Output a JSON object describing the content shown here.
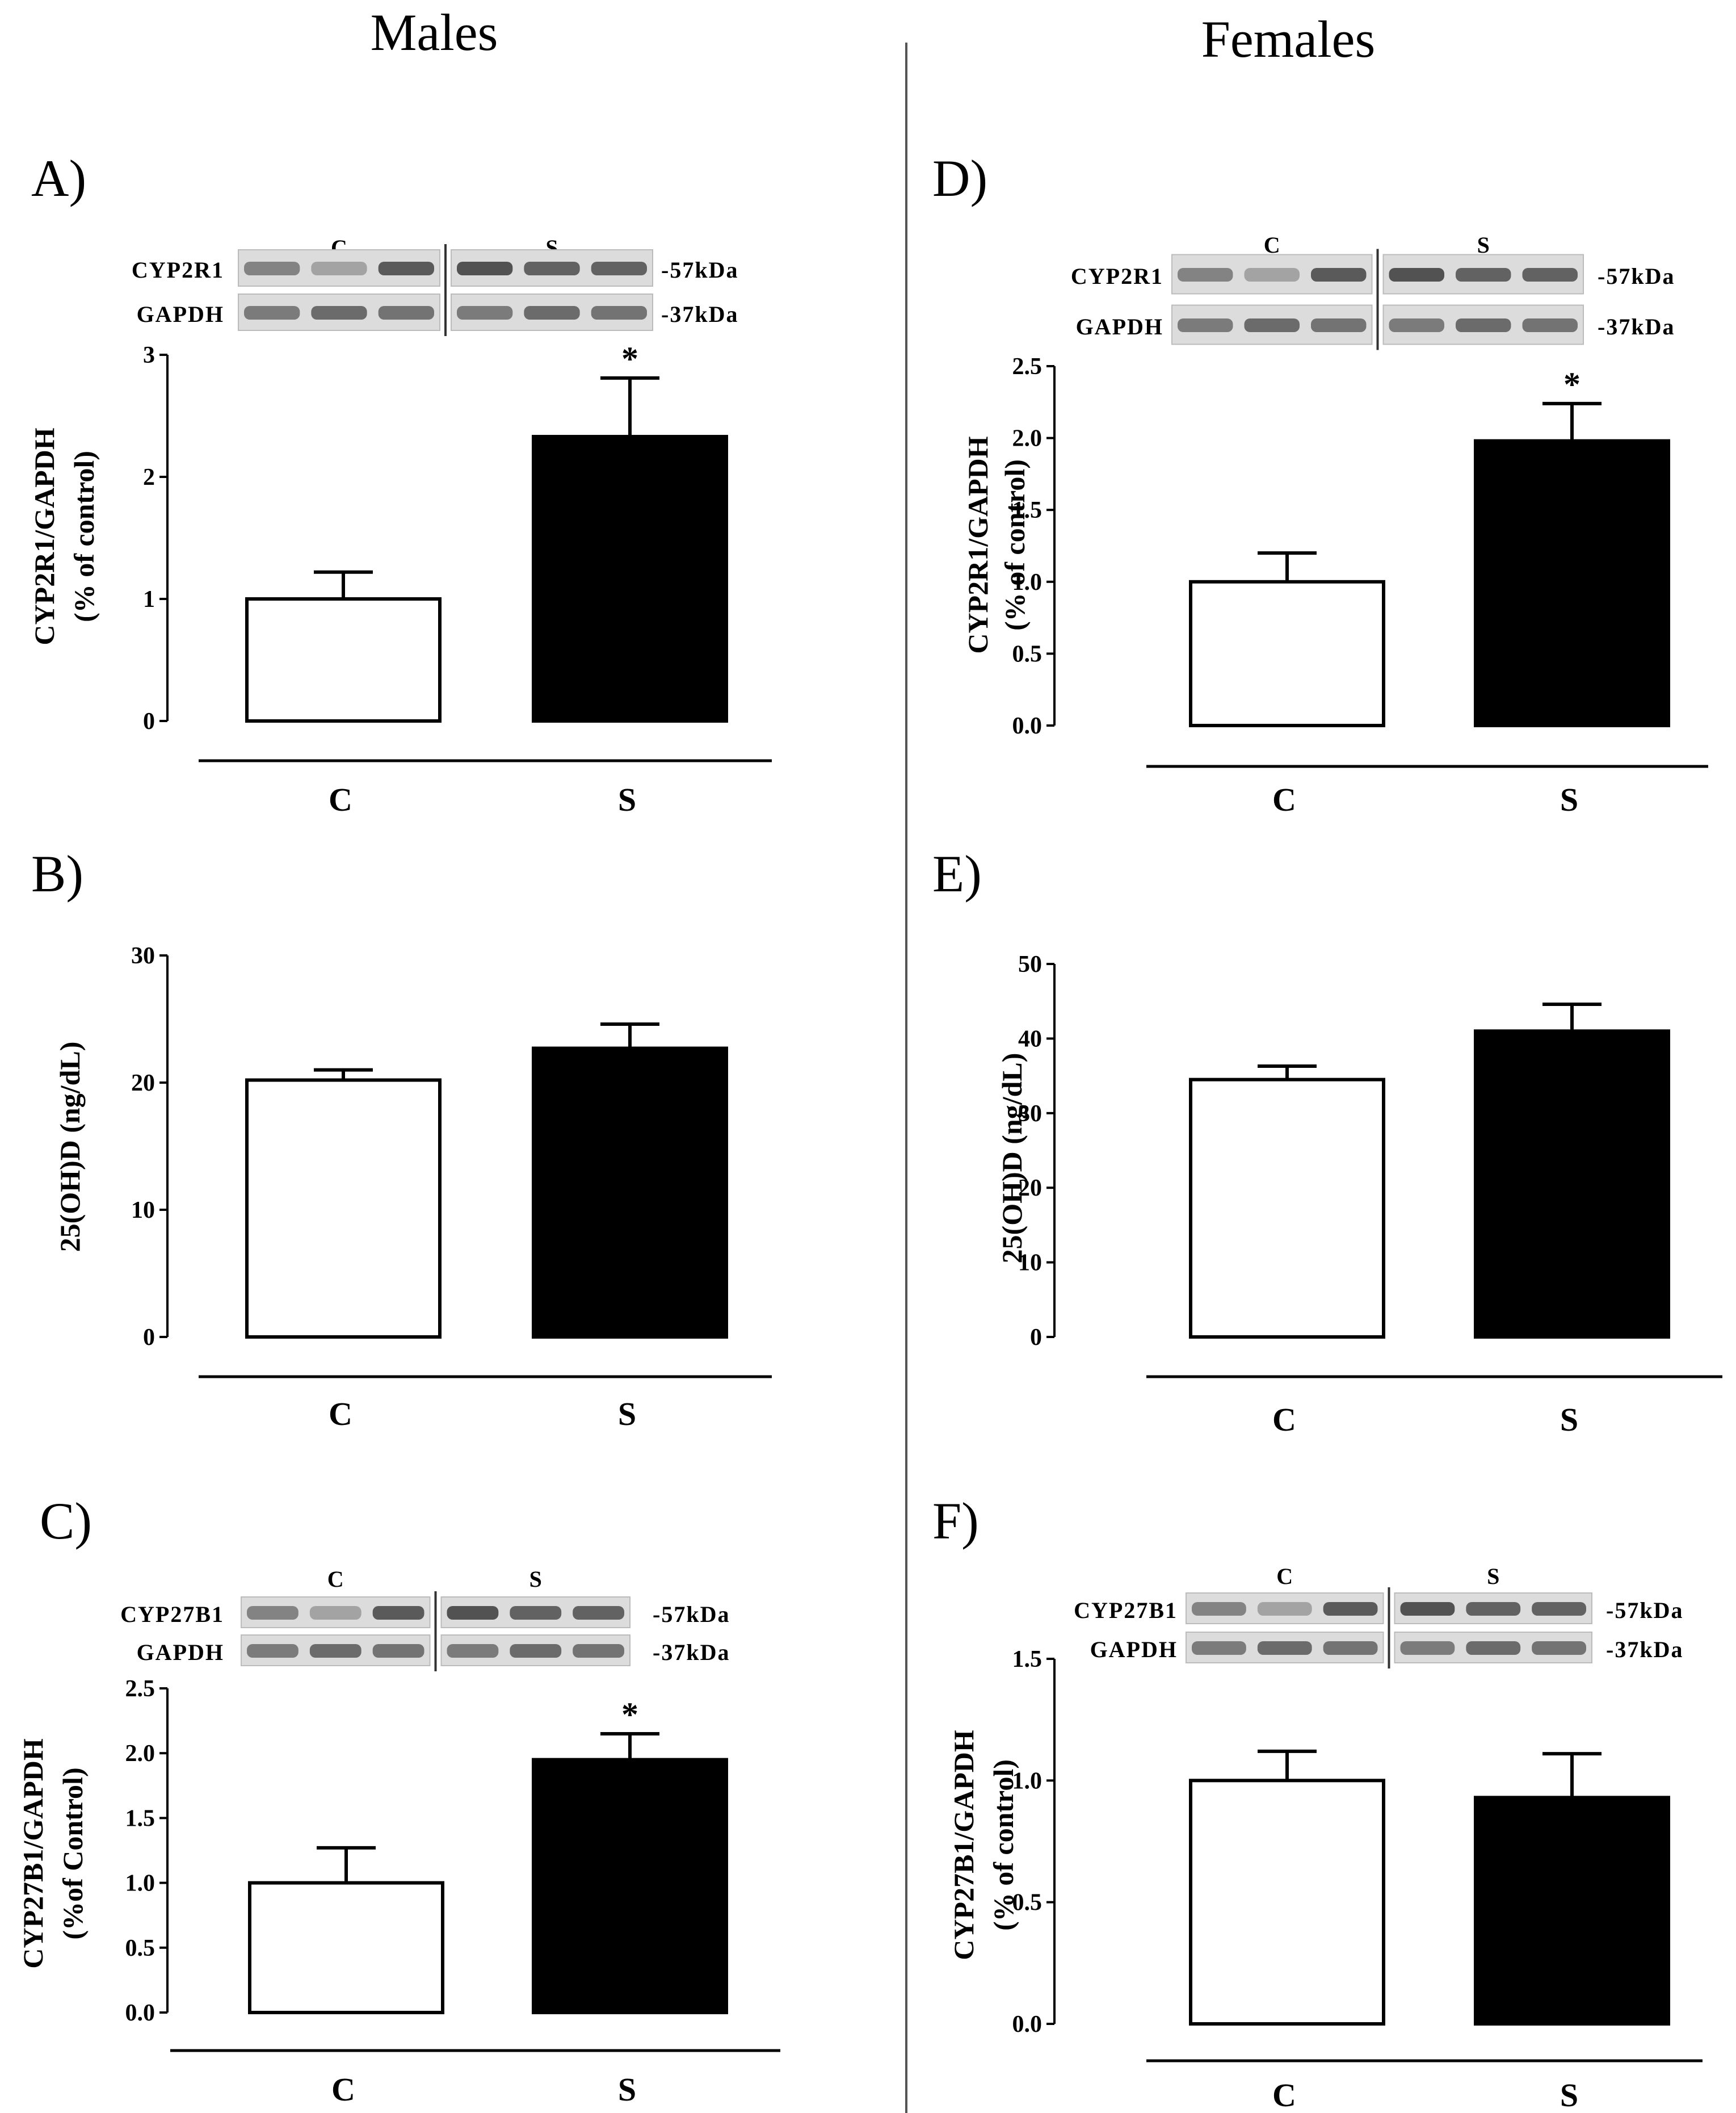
{
  "column_titles": {
    "left": "Males",
    "right": "Females"
  },
  "colors": {
    "control_fill": "#ffffff",
    "treated_fill": "#000000",
    "stroke": "#000000",
    "blot_bg": "#dcdcdc",
    "blot_band": "#3a3a3a"
  },
  "chart_data": [
    {
      "id": "A",
      "panel_label": "A)",
      "type": "bar",
      "categories": [
        "C",
        "S"
      ],
      "values": [
        1.0,
        2.33
      ],
      "errors": [
        0.22,
        0.48
      ],
      "significance": [
        "",
        "*"
      ],
      "ylim": [
        0,
        3
      ],
      "yticks": [
        "0",
        "1",
        "2",
        "3"
      ],
      "ylabel_lines": [
        "CYP2R1/GAPDH",
        "(% of control)"
      ],
      "blot": {
        "group_labels": [
          "C",
          "S"
        ],
        "rows": [
          {
            "label": "CYP2R1",
            "kda": "-57kDa"
          },
          {
            "label": "GAPDH",
            "kda": "-37kDa"
          }
        ]
      }
    },
    {
      "id": "B",
      "panel_label": "B)",
      "type": "bar",
      "categories": [
        "C",
        "S"
      ],
      "values": [
        20.2,
        22.7
      ],
      "errors": [
        0.8,
        1.9
      ],
      "significance": [
        "",
        ""
      ],
      "ylim": [
        0,
        30
      ],
      "yticks": [
        "0",
        "10",
        "20",
        "30"
      ],
      "ylabel_lines": [
        "25(OH)D (ng/dL)"
      ]
    },
    {
      "id": "C",
      "panel_label": "C)",
      "type": "bar",
      "categories": [
        "C",
        "S"
      ],
      "values": [
        1.0,
        1.95
      ],
      "errors": [
        0.27,
        0.2
      ],
      "significance": [
        "",
        "*"
      ],
      "ylim": [
        0,
        2.5
      ],
      "yticks": [
        "0.0",
        "0.5",
        "1.0",
        "1.5",
        "2.0",
        "2.5"
      ],
      "ylabel_lines": [
        "CYP27B1/GAPDH",
        "(%of Control)"
      ],
      "blot": {
        "group_labels": [
          "C",
          "S"
        ],
        "rows": [
          {
            "label": "CYP27B1",
            "kda": "-57kDa"
          },
          {
            "label": "GAPDH",
            "kda": "-37kDa"
          }
        ]
      }
    },
    {
      "id": "D",
      "panel_label": "D)",
      "type": "bar",
      "categories": [
        "C",
        "S"
      ],
      "values": [
        1.0,
        1.98
      ],
      "errors": [
        0.2,
        0.26
      ],
      "significance": [
        "",
        "*"
      ],
      "ylim": [
        0,
        2.5
      ],
      "yticks": [
        "0.0",
        "0.5",
        "1.0",
        "1.5",
        "2.0",
        "2.5"
      ],
      "ylabel_lines": [
        "CYP2R1/GAPDH",
        "(% of control)"
      ],
      "blot": {
        "group_labels": [
          "C",
          "S"
        ],
        "rows": [
          {
            "label": "CYP2R1",
            "kda": "-57kDa"
          },
          {
            "label": "GAPDH",
            "kda": "-37kDa"
          }
        ]
      }
    },
    {
      "id": "E",
      "panel_label": "E)",
      "type": "bar",
      "categories": [
        "C",
        "S"
      ],
      "values": [
        34.5,
        41.0
      ],
      "errors": [
        1.8,
        3.6
      ],
      "significance": [
        "",
        ""
      ],
      "ylim": [
        0,
        50
      ],
      "yticks": [
        "0",
        "10",
        "20",
        "30",
        "40",
        "50"
      ],
      "ylabel_lines": [
        "25(OH)D (ng/dL)"
      ]
    },
    {
      "id": "F",
      "panel_label": "F)",
      "type": "bar",
      "categories": [
        "C",
        "S"
      ],
      "values": [
        1.0,
        0.93
      ],
      "errors": [
        0.12,
        0.18
      ],
      "significance": [
        "",
        ""
      ],
      "ylim": [
        0,
        1.5
      ],
      "yticks": [
        "0.0",
        "0.5",
        "1.0",
        "1.5"
      ],
      "ylabel_lines": [
        "CYP27B1/GAPDH",
        "(% of control)"
      ],
      "blot": {
        "group_labels": [
          "C",
          "S"
        ],
        "rows": [
          {
            "label": "CYP27B1",
            "kda": "-57kDa"
          },
          {
            "label": "GAPDH",
            "kda": "-37kDa"
          }
        ]
      }
    }
  ]
}
